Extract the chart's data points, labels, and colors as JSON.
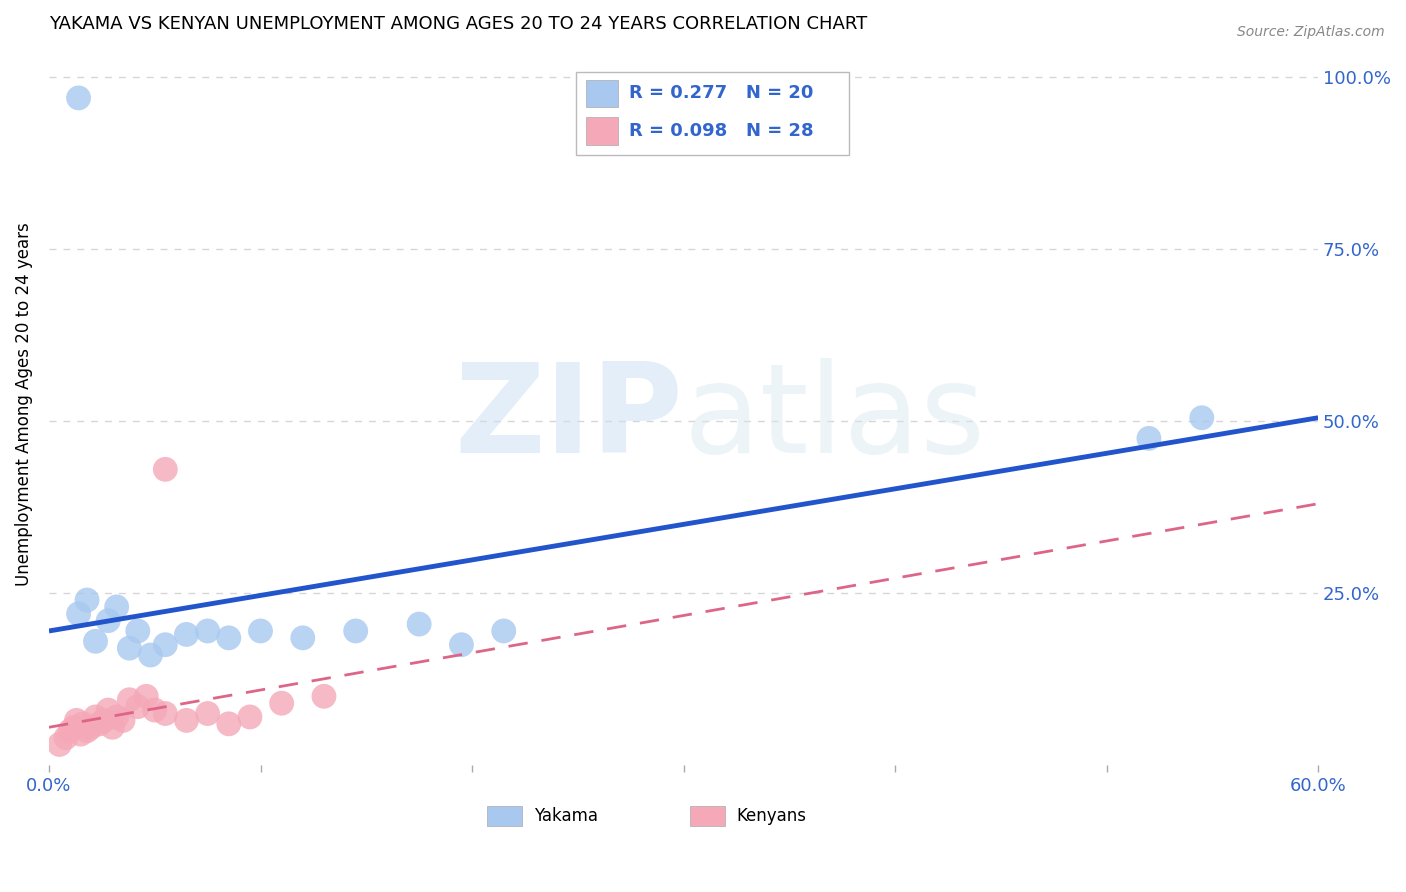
{
  "title": "YAKAMA VS KENYAN UNEMPLOYMENT AMONG AGES 20 TO 24 YEARS CORRELATION CHART",
  "source": "Source: ZipAtlas.com",
  "ylabel": "Unemployment Among Ages 20 to 24 years",
  "xlim": [
    0.0,
    0.6
  ],
  "ylim": [
    0.0,
    1.05
  ],
  "xticks": [
    0.0,
    0.1,
    0.2,
    0.3,
    0.4,
    0.5,
    0.6
  ],
  "ytick_positions": [
    0.0,
    0.25,
    0.5,
    0.75,
    1.0
  ],
  "ytick_labels": [
    "",
    "25.0%",
    "50.0%",
    "75.0%",
    "100.0%"
  ],
  "watermark_zip": "ZIP",
  "watermark_atlas": "atlas",
  "legend_r1": "R = 0.277",
  "legend_n1": "N = 20",
  "legend_r2": "R = 0.098",
  "legend_n2": "N = 28",
  "yakama_color": "#a8c8f0",
  "kenyan_color": "#f4a8b8",
  "line_blue": "#2255cc",
  "line_pink": "#dd6688",
  "axis_color": "#3366cc",
  "background": "#ffffff",
  "grid_color": "#cccccc",
  "yakama_x": [
    0.014,
    0.018,
    0.022,
    0.028,
    0.032,
    0.038,
    0.042,
    0.048,
    0.055,
    0.065,
    0.075,
    0.085,
    0.1,
    0.12,
    0.145,
    0.175,
    0.195,
    0.215,
    0.52,
    0.545
  ],
  "yakama_y": [
    0.22,
    0.24,
    0.18,
    0.21,
    0.23,
    0.17,
    0.195,
    0.16,
    0.175,
    0.19,
    0.195,
    0.185,
    0.195,
    0.185,
    0.195,
    0.205,
    0.175,
    0.195,
    0.475,
    0.505
  ],
  "yakama_outlier_x": [
    0.014
  ],
  "yakama_outlier_y": [
    0.97
  ],
  "kenyan_x": [
    0.005,
    0.008,
    0.01,
    0.012,
    0.013,
    0.015,
    0.016,
    0.018,
    0.02,
    0.022,
    0.024,
    0.026,
    0.028,
    0.03,
    0.032,
    0.035,
    0.038,
    0.042,
    0.046,
    0.05,
    0.055,
    0.065,
    0.075,
    0.085,
    0.095,
    0.11,
    0.13,
    0.055
  ],
  "kenyan_y": [
    0.03,
    0.04,
    0.05,
    0.055,
    0.065,
    0.045,
    0.06,
    0.05,
    0.055,
    0.07,
    0.06,
    0.065,
    0.08,
    0.055,
    0.07,
    0.065,
    0.095,
    0.085,
    0.1,
    0.08,
    0.075,
    0.065,
    0.075,
    0.06,
    0.07,
    0.09,
    0.1,
    0.43
  ],
  "blue_line_x0": 0.0,
  "blue_line_y0": 0.195,
  "blue_line_x1": 0.6,
  "blue_line_y1": 0.505,
  "pink_line_x0": 0.0,
  "pink_line_y0": 0.055,
  "pink_line_x1": 0.6,
  "pink_line_y1": 0.38
}
